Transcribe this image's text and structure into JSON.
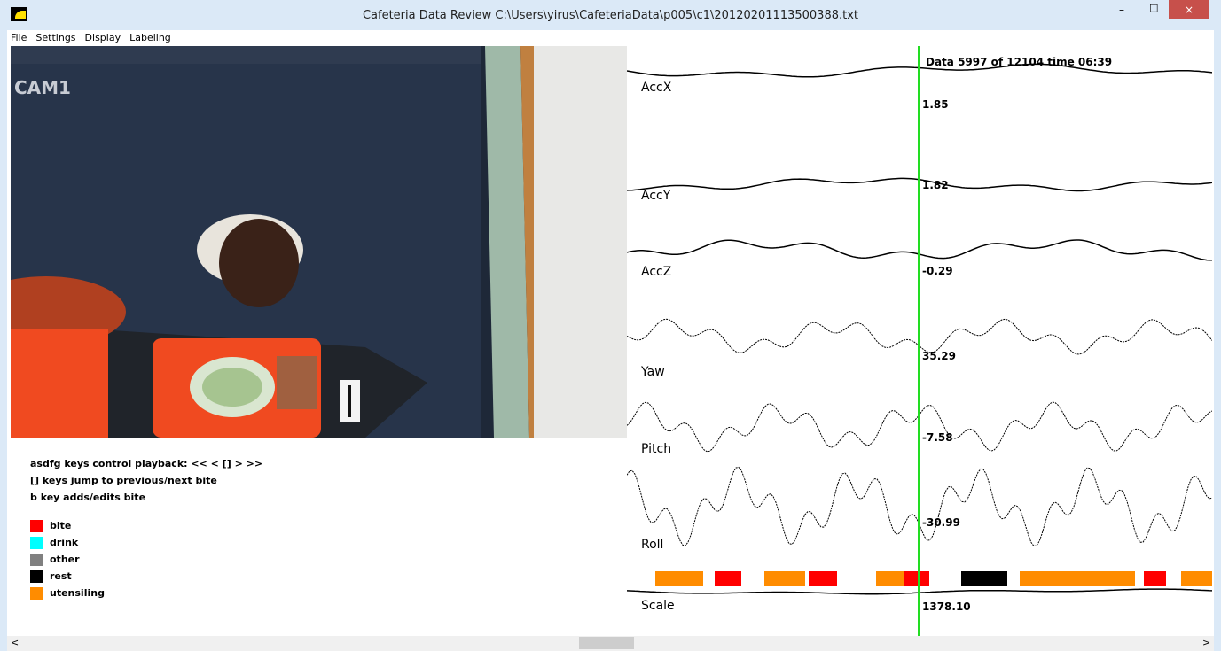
{
  "window": {
    "title": "Cafeteria Data Review   C:\\Users\\yirus\\CafeteriaData\\p005\\c1\\20120201113500388.txt"
  },
  "menu": [
    "File",
    "Settings",
    "Display",
    "Labeling"
  ],
  "video": {
    "camera_label": "CAM1"
  },
  "instructions": [
    "asdfg keys control playback:  << < [] > >>",
    "[] keys jump to previous/next bite",
    "b key adds/edits bite"
  ],
  "legend": [
    {
      "label": "bite",
      "color": "#ff0000"
    },
    {
      "label": "drink",
      "color": "#00ffff"
    },
    {
      "label": "other",
      "color": "#808080"
    },
    {
      "label": "rest",
      "color": "#000000"
    },
    {
      "label": "utensiling",
      "color": "#ff8c00"
    }
  ],
  "plot": {
    "status": "Data 5997 of 12104  time 06:39",
    "channels": [
      {
        "name": "AccX",
        "value": "1.85"
      },
      {
        "name": "AccY",
        "value": "1.82"
      },
      {
        "name": "AccZ",
        "value": "-0.29"
      },
      {
        "name": "Yaw",
        "value": "35.29"
      },
      {
        "name": "Pitch",
        "value": "-7.58"
      },
      {
        "name": "Roll",
        "value": "-30.99"
      },
      {
        "name": "Scale",
        "value": "1378.10"
      }
    ]
  }
}
